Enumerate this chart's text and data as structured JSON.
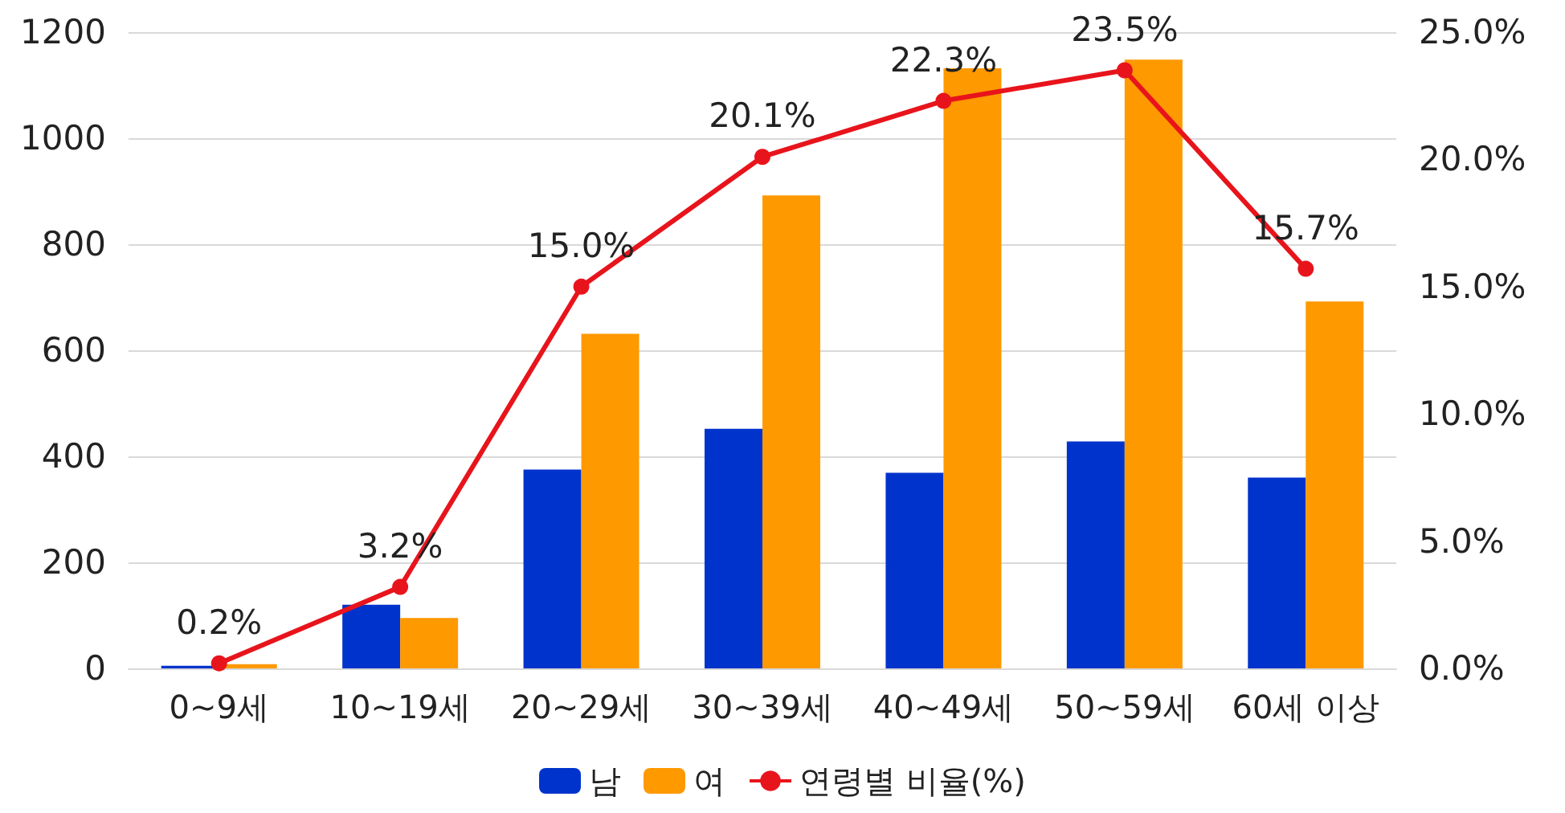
{
  "chart_data": {
    "type": "bar",
    "categories": [
      "0~9세",
      "10~19세",
      "20~29세",
      "30~39세",
      "40~49세",
      "50~59세",
      "60세 이상"
    ],
    "series": [
      {
        "name": "남",
        "color": "#0033cc",
        "values": [
          5,
          120,
          375,
          452,
          369,
          428,
          360
        ]
      },
      {
        "name": "여",
        "color": "#ff9900",
        "values": [
          8,
          95,
          631,
          892,
          1132,
          1148,
          692
        ]
      },
      {
        "name": "연령별 비율(%)",
        "type": "line",
        "axis": "y2",
        "color": "#e8141c",
        "marker": "circle",
        "values": [
          0.2,
          3.2,
          15.0,
          20.1,
          22.3,
          23.5,
          15.7
        ],
        "value_labels": [
          "0.2%",
          "3.2%",
          "15.0%",
          "20.1%",
          "22.3%",
          "23.5%",
          "15.7%"
        ]
      }
    ],
    "ylim": [
      0,
      1200
    ],
    "yticks": [
      0,
      200,
      400,
      600,
      800,
      1000,
      1200
    ],
    "y2lim": [
      0,
      25
    ],
    "y2ticks": [
      {
        "value": 0,
        "label": "0.0%"
      },
      {
        "value": 5,
        "label": "5.0%"
      },
      {
        "value": 10,
        "label": "10.0%"
      },
      {
        "value": 15,
        "label": "15.0%"
      },
      {
        "value": 20,
        "label": "20.0%"
      },
      {
        "value": 25,
        "label": "25.0%"
      }
    ],
    "grid": "y",
    "legend": "bottom"
  }
}
